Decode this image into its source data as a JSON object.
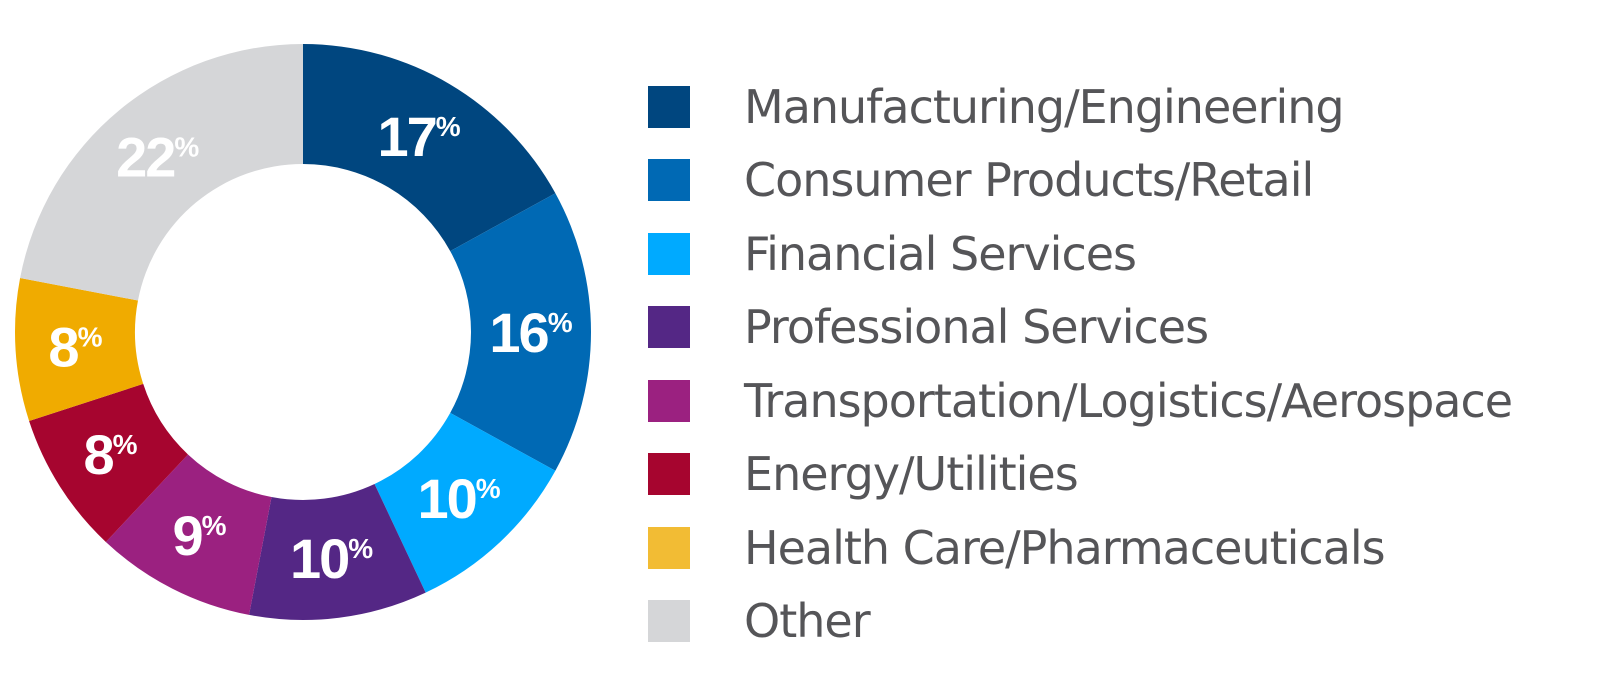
{
  "chart_data": {
    "type": "pie",
    "subtype": "donut",
    "title": "",
    "legend_position": "right",
    "categories": [
      "Manufacturing/Engineering",
      "Consumer Products/Retail",
      "Financial Services",
      "Professional Services",
      "Transportation/Logistics/Aerospace",
      "Energy/Utilities",
      "Health Care/Pharmaceuticals",
      "Other"
    ],
    "values": [
      17,
      16,
      10,
      10,
      9,
      8,
      8,
      22
    ],
    "unit": "%",
    "colors": [
      "#00467f",
      "#0069b4",
      "#00aaff",
      "#542785",
      "#9b2180",
      "#a6052f",
      "#f0ab00",
      "#d5d6d8"
    ],
    "legend_colors": [
      "#00467f",
      "#0069b4",
      "#00aaff",
      "#542785",
      "#9b2180",
      "#a6052f",
      "#f2bc34",
      "#d5d6d8"
    ]
  }
}
